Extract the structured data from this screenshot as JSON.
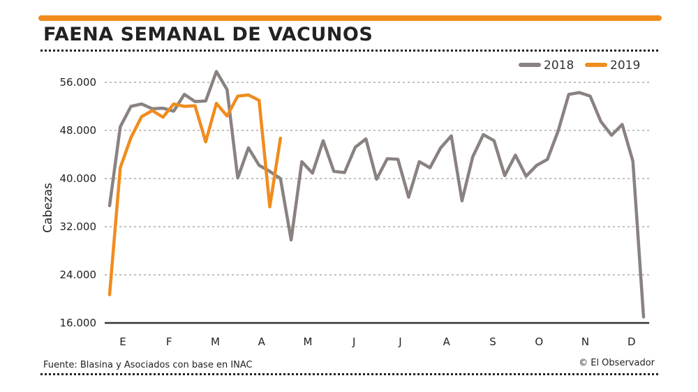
{
  "title": "FAENA SEMANAL DE VACUNOS",
  "source": "Fuente: Blasina y Asociados con base en INAC",
  "credit": "© El Observador",
  "colors": {
    "accent": "#f08c1e",
    "series2018": "#8a8280",
    "series2019": "#f08c1e",
    "grid": "#9a9a9a",
    "axis": "#333333"
  },
  "chart_data": {
    "type": "line",
    "title": "FAENA SEMANAL DE VACUNOS",
    "xlabel": "",
    "ylabel": "Cabezas",
    "ylim": [
      16000,
      58000
    ],
    "yticks": [
      16000,
      24000,
      32000,
      40000,
      48000,
      56000
    ],
    "ytick_labels": [
      "16.000",
      "24.000",
      "32.000",
      "40.000",
      "48.000",
      "56.000"
    ],
    "month_labels": [
      "E",
      "F",
      "M",
      "A",
      "M",
      "J",
      "J",
      "A",
      "S",
      "O",
      "N",
      "D"
    ],
    "weeks_per_month_label": 4.33,
    "grid": true,
    "legend": "top-right",
    "series": [
      {
        "name": "2018",
        "color": "#8a8280",
        "values": [
          35500,
          48600,
          52000,
          52400,
          51600,
          51700,
          51200,
          54000,
          52800,
          52900,
          57800,
          54800,
          40100,
          45100,
          42200,
          41200,
          40000,
          29800,
          42800,
          40900,
          46300,
          41200,
          41000,
          45200,
          46600,
          39900,
          43300,
          43200,
          36900,
          42800,
          41800,
          45100,
          47100,
          36300,
          43600,
          47300,
          46300,
          40500,
          43900,
          40400,
          42200,
          43200,
          47900,
          54000,
          54300,
          53700,
          49500,
          47200,
          49000,
          42900,
          17000
        ]
      },
      {
        "name": "2019",
        "color": "#f08c1e",
        "values": [
          20700,
          41800,
          46800,
          50300,
          51300,
          50200,
          52400,
          52000,
          52100,
          46100,
          52500,
          50400,
          53700,
          53900,
          53000,
          35300,
          46700
        ]
      }
    ]
  }
}
